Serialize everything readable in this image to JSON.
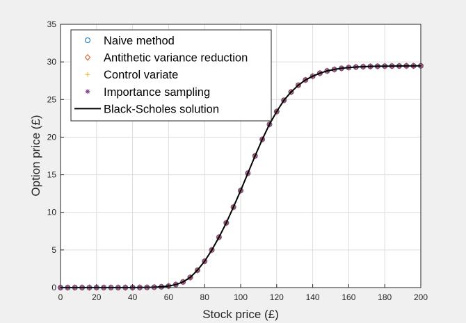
{
  "chart_data": {
    "type": "scatter",
    "xlabel": "Stock price (£)",
    "ylabel": "Option price (£)",
    "xlim": [
      0,
      200
    ],
    "ylim": [
      0,
      35
    ],
    "xticks": [
      0,
      20,
      40,
      60,
      80,
      100,
      120,
      140,
      160,
      180,
      200
    ],
    "yticks": [
      0,
      5,
      10,
      15,
      20,
      25,
      30,
      35
    ],
    "grid": true,
    "legend_position": "top-left",
    "x": [
      0,
      4,
      8,
      12,
      16,
      20,
      24,
      28,
      32,
      36,
      40,
      44,
      48,
      52,
      56,
      60,
      64,
      68,
      72,
      76,
      80,
      84,
      88,
      92,
      96,
      100,
      104,
      108,
      112,
      116,
      120,
      124,
      128,
      132,
      136,
      140,
      144,
      148,
      152,
      156,
      160,
      164,
      168,
      172,
      176,
      180,
      184,
      188,
      192,
      196,
      200
    ],
    "series": [
      {
        "name": "Naive method",
        "marker": "circle",
        "color": "#0072BD",
        "values": [
          0,
          0,
          0,
          0,
          0,
          0,
          0,
          0,
          0,
          0,
          0,
          0.01,
          0.02,
          0.05,
          0.1,
          0.2,
          0.4,
          0.75,
          1.35,
          2.3,
          3.5,
          5.0,
          6.7,
          8.6,
          10.7,
          12.9,
          15.2,
          17.5,
          19.7,
          21.7,
          23.4,
          24.9,
          26.0,
          26.9,
          27.6,
          28.1,
          28.5,
          28.8,
          29.0,
          29.15,
          29.25,
          29.32,
          29.37,
          29.4,
          29.42,
          29.44,
          29.45,
          29.46,
          29.47,
          29.47,
          29.48
        ]
      },
      {
        "name": "Antithetic variance reduction",
        "marker": "diamond",
        "color": "#D95319",
        "values": [
          0,
          0,
          0,
          0,
          0,
          0,
          0,
          0,
          0,
          0,
          0,
          0.01,
          0.02,
          0.05,
          0.1,
          0.2,
          0.4,
          0.75,
          1.35,
          2.3,
          3.5,
          5.0,
          6.7,
          8.6,
          10.7,
          12.9,
          15.2,
          17.5,
          19.7,
          21.7,
          23.4,
          24.9,
          26.0,
          26.9,
          27.6,
          28.1,
          28.5,
          28.8,
          29.0,
          29.15,
          29.25,
          29.32,
          29.37,
          29.4,
          29.42,
          29.44,
          29.45,
          29.46,
          29.47,
          29.47,
          29.48
        ]
      },
      {
        "name": "Control variate",
        "marker": "plus",
        "color": "#EDB120",
        "values": [
          0,
          0,
          0,
          0,
          0,
          0,
          0,
          0,
          0,
          0,
          0,
          0.01,
          0.02,
          0.05,
          0.1,
          0.2,
          0.4,
          0.75,
          1.35,
          2.3,
          3.5,
          5.0,
          6.7,
          8.6,
          10.7,
          12.9,
          15.2,
          17.5,
          19.7,
          21.7,
          23.4,
          24.9,
          26.0,
          26.9,
          27.6,
          28.1,
          28.5,
          28.8,
          29.0,
          29.15,
          29.25,
          29.32,
          29.37,
          29.4,
          29.42,
          29.44,
          29.45,
          29.46,
          29.47,
          29.47,
          29.48
        ]
      },
      {
        "name": "Importance sampling",
        "marker": "asterisk",
        "color": "#7E2F8E",
        "values": [
          0,
          0,
          0,
          0,
          0,
          0,
          0,
          0,
          0,
          0,
          0,
          0.01,
          0.02,
          0.05,
          0.1,
          0.2,
          0.4,
          0.75,
          1.35,
          2.3,
          3.5,
          5.0,
          6.7,
          8.6,
          10.7,
          12.9,
          15.2,
          17.5,
          19.7,
          21.7,
          23.4,
          24.9,
          26.0,
          26.9,
          27.6,
          28.1,
          28.5,
          28.8,
          29.0,
          29.15,
          29.25,
          29.32,
          29.37,
          29.4,
          29.42,
          29.44,
          29.45,
          29.46,
          29.47,
          29.47,
          29.48
        ]
      },
      {
        "name": "Black-Scholes solution",
        "marker": "line",
        "color": "#000000",
        "values": [
          0,
          0,
          0,
          0,
          0,
          0,
          0,
          0,
          0,
          0,
          0,
          0.01,
          0.02,
          0.05,
          0.1,
          0.2,
          0.4,
          0.75,
          1.35,
          2.3,
          3.5,
          5.0,
          6.7,
          8.6,
          10.7,
          12.9,
          15.2,
          17.5,
          19.7,
          21.7,
          23.4,
          24.9,
          26.0,
          26.9,
          27.6,
          28.1,
          28.5,
          28.8,
          29.0,
          29.15,
          29.25,
          29.32,
          29.37,
          29.4,
          29.42,
          29.44,
          29.45,
          29.46,
          29.47,
          29.47,
          29.48
        ]
      }
    ]
  }
}
